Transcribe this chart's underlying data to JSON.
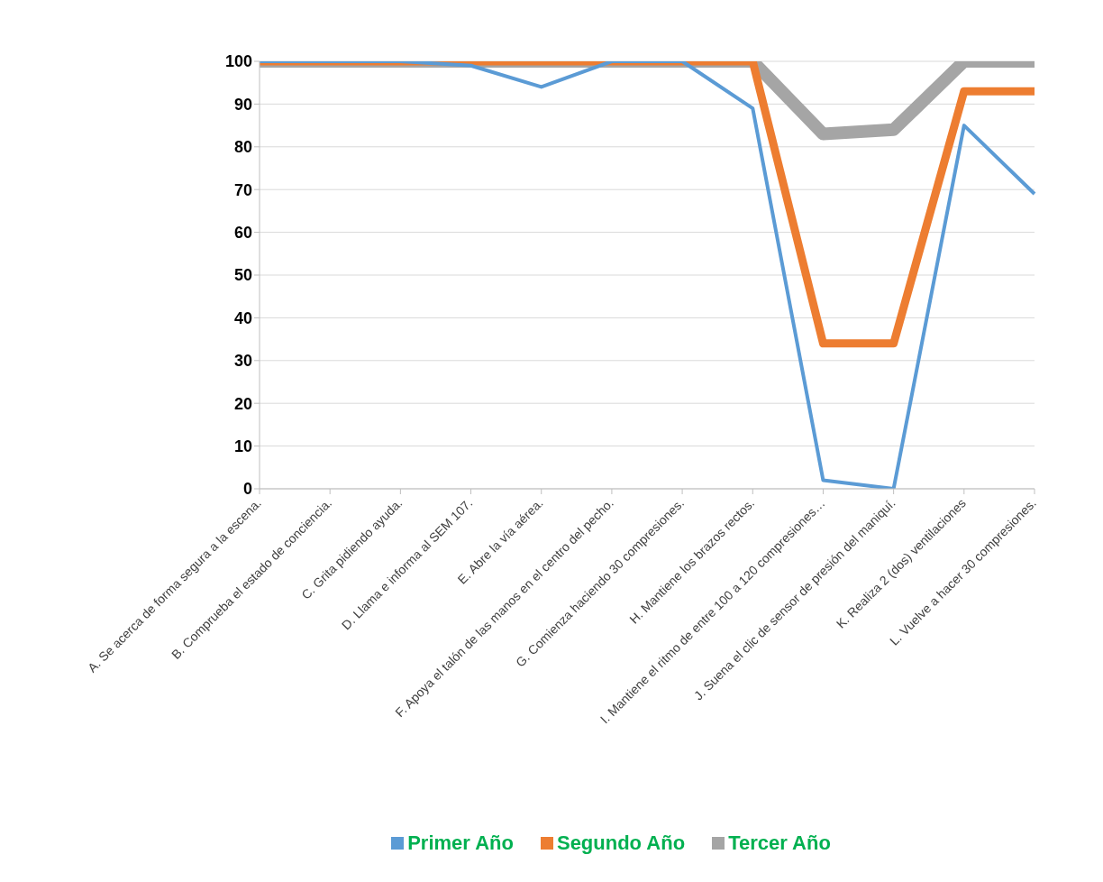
{
  "chart_data": {
    "type": "line",
    "categories": [
      "A.  Se acerca de forma segura a la escena.",
      "B.  Comprueba el estado de conciencia.",
      "C.  Grita pidiendo ayuda.",
      "D.  Llama e informa al SEM 107.",
      "E.  Abre la vía aérea.",
      "F.  Apoya el talón de las manos en el centro del pecho.",
      "G.  Comienza haciendo 30 compresiones.",
      "H.  Mantiene los brazos rectos.",
      "I.  Mantiene el ritmo de entre 100 a 120 compresiones…",
      "J.  Suena el clic de sensor de presión del maniquí.",
      "K.  Realiza 2 (dos) ventilaciones",
      "L.  Vuelve a hacer 30 compresiones."
    ],
    "series": [
      {
        "name": "Primer Año",
        "color": "#5b9bd5",
        "values": [
          100,
          100,
          100,
          99,
          94,
          100,
          100,
          89,
          2,
          0,
          85,
          69
        ]
      },
      {
        "name": "Segundo Año",
        "color": "#ed7d31",
        "values": [
          100,
          100,
          100,
          100,
          100,
          100,
          100,
          100,
          34,
          34,
          93,
          93
        ]
      },
      {
        "name": "Tercer Año",
        "color": "#a5a5a5",
        "values": [
          100,
          100,
          100,
          100,
          100,
          100,
          100,
          100,
          83,
          84,
          100,
          100
        ]
      }
    ],
    "ylim": [
      0,
      100
    ],
    "yticks": [
      0,
      10,
      20,
      30,
      40,
      50,
      60,
      70,
      80,
      90,
      100
    ],
    "grid": "y",
    "legend": "bottom",
    "marker": "none",
    "line_style": "solid"
  }
}
